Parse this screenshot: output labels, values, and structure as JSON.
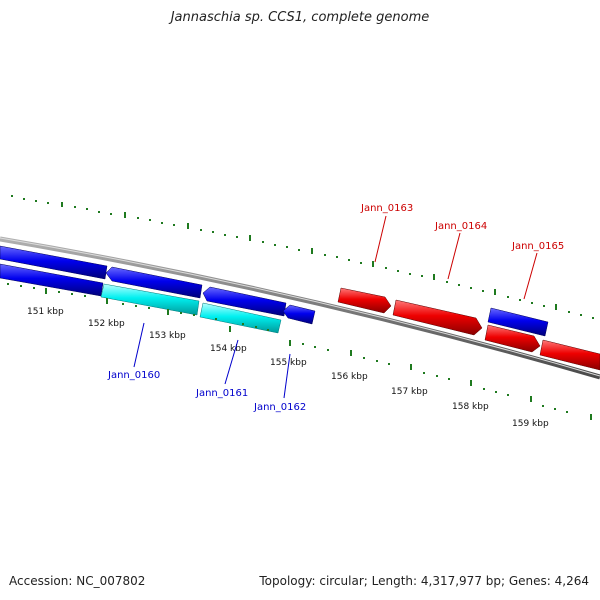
{
  "title": "Jannaschia sp. CCS1, complete genome",
  "footer": {
    "accession": "Accession: NC_007802",
    "summary": "Topology: circular; Length: 4,317,977 bp; Genes: 4,264"
  },
  "colors": {
    "backbone": "#808080",
    "forward_gene": "#ff0000",
    "reverse_gene": "#0000ff",
    "highlight_gene": "#00ffff",
    "ruler": "#1f7a1f",
    "label_forward": "#cc0000",
    "label_reverse": "#0000cc"
  },
  "ruler_labels": [
    "151 kbp",
    "152 kbp",
    "153 kbp",
    "154 kbp",
    "155 kbp",
    "156 kbp",
    "157 kbp",
    "158 kbp",
    "159 kbp"
  ],
  "gene_labels": [
    "Jann_0160",
    "Jann_0161",
    "Jann_0162",
    "Jann_0163",
    "Jann_0164",
    "Jann_0165"
  ]
}
